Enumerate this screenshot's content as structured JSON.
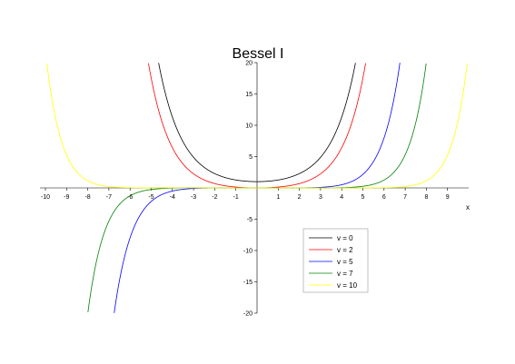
{
  "chart_data": {
    "type": "line",
    "title": "Bessel I",
    "xlabel": "x",
    "ylabel": "",
    "xlim": [
      -10,
      10
    ],
    "ylim": [
      -20,
      20
    ],
    "x_ticks": [
      -10,
      -9,
      -8,
      -7,
      -6,
      -5,
      -4,
      -3,
      -2,
      -1,
      1,
      2,
      3,
      4,
      5,
      6,
      7,
      8,
      9
    ],
    "y_ticks": [
      -20,
      -15,
      -10,
      -5,
      5,
      10,
      15,
      20
    ],
    "grid": false,
    "legend_position": "bottom-right",
    "series": [
      {
        "name": "v = 0",
        "order": 0,
        "color": "#000000"
      },
      {
        "name": "v = 2",
        "order": 2,
        "color": "#ff0000"
      },
      {
        "name": "v = 5",
        "order": 5,
        "color": "#0000ff"
      },
      {
        "name": "v = 7",
        "order": 7,
        "color": "#008000"
      },
      {
        "name": "v = 10",
        "order": 10,
        "color": "#ffff00"
      }
    ]
  }
}
